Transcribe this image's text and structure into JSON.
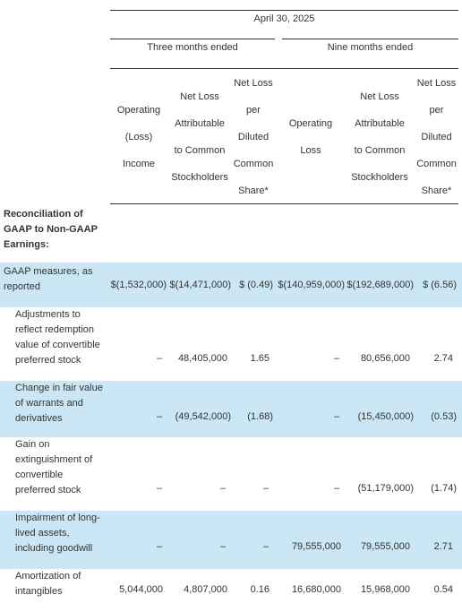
{
  "header": {
    "period": "April 30, 2025",
    "group_left": "Three months ended",
    "group_right": "Nine months ended",
    "columns": [
      [
        "Operating",
        "(Loss)",
        "Income"
      ],
      [
        "Net Loss",
        "Attributable",
        "to Common",
        "Stockholders"
      ],
      [
        "Net Loss",
        "per",
        "Diluted",
        "Common",
        "Share*"
      ],
      [
        "Operating",
        "Loss"
      ],
      [
        "Net Loss",
        "Attributable",
        "to Common",
        "Stockholders"
      ],
      [
        "Net Loss",
        "per",
        "Diluted",
        "Common",
        "Share*"
      ]
    ]
  },
  "section_title": [
    "Reconciliation of",
    "GAAP to Non-GAAP",
    "Earnings:"
  ],
  "rows": [
    {
      "label": [
        "GAAP measures, as",
        "reported"
      ],
      "cells": [
        "$(1,532,000)",
        "$(14,471,000)",
        "$ (0.49)",
        "$(140,959,000)",
        "$(192,689,000)",
        "$ (6.56)"
      ],
      "shaded": true
    },
    {
      "label": [
        "Adjustments to",
        "reflect redemption",
        "value of convertible",
        "preferred stock"
      ],
      "cells": [
        "–",
        "48,405,000",
        "1.65",
        "–",
        "80,656,000",
        "2.74"
      ],
      "shaded": false
    },
    {
      "label": [
        "Change in fair value",
        "of warrants and",
        "derivatives"
      ],
      "cells": [
        "–",
        "(49,542,000)",
        "(1.68)",
        "–",
        "(15,450,000)",
        "(0.53)"
      ],
      "shaded": true
    },
    {
      "label": [
        "Gain on",
        "extinguishment of",
        "convertible",
        "preferred stock"
      ],
      "cells": [
        "–",
        "–",
        "–",
        "–",
        "(51,179,000)",
        "(1.74)"
      ],
      "shaded": false
    },
    {
      "label": [
        "Impairment of long-",
        "lived assets,",
        "including goodwill"
      ],
      "cells": [
        "–",
        "–",
        "–",
        "79,555,000",
        "79,555,000",
        "2.71"
      ],
      "shaded": true
    },
    {
      "label": [
        "Amortization of",
        "intangibles"
      ],
      "cells": [
        "5,044,000",
        "4,807,000",
        "0.16",
        "16,680,000",
        "15,968,000",
        "0.54"
      ],
      "shaded": false
    }
  ],
  "colors": {
    "shade": "#cbe7f6",
    "text": "#333333",
    "rule": "#333333"
  }
}
